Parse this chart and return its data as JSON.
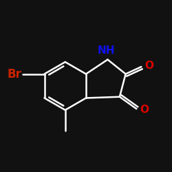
{
  "bg_color": "#111111",
  "bond_color": "white",
  "atom_colors": {
    "Br": "#CC2200",
    "N": "#1111EE",
    "O": "#DD0000",
    "C": "white"
  },
  "line_width": 1.8,
  "font_size_label": 11,
  "figsize": [
    2.5,
    2.5
  ],
  "dpi": 100
}
